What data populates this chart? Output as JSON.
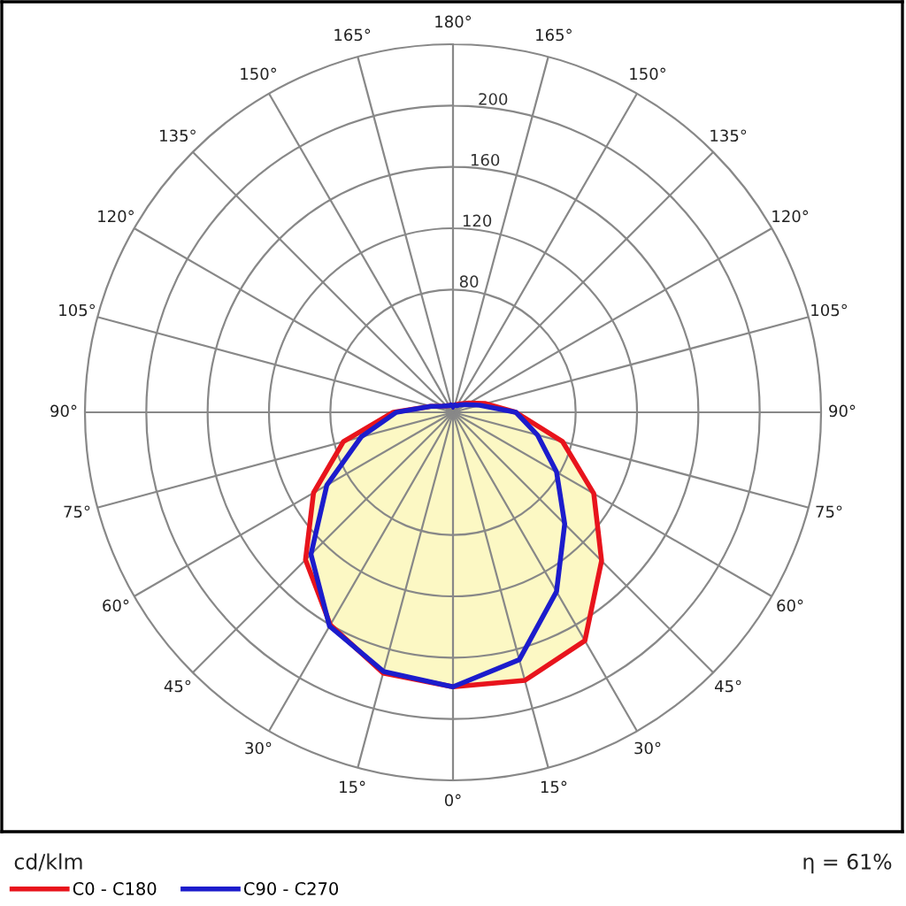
{
  "chart_data": {
    "type": "radar",
    "categories": [
      "180°",
      "165°",
      "150°",
      "135°",
      "120°",
      "105°",
      "90°",
      "75°",
      "60°",
      "45°",
      "30°",
      "15°",
      "0°",
      "15°",
      "30°",
      "45°",
      "60°",
      "75°",
      "90°",
      "105°",
      "120°",
      "135°",
      "150°",
      "165°"
    ],
    "series": [
      {
        "name": "C0 - C180",
        "color": "#e8141c",
        "values": [
          4,
          5,
          6,
          8,
          12,
          22,
          41,
          74,
          106,
          137,
          172,
          181,
          179,
          176,
          160,
          136,
          105,
          74,
          39,
          15,
          8,
          6,
          5,
          5
        ]
      },
      {
        "name": "C90 - C270",
        "color": "#1c1ccc",
        "values": [
          4,
          5,
          5,
          7,
          10,
          18,
          41,
          57,
          78,
          103,
          135,
          167,
          179,
          175,
          161,
          131,
          95,
          62,
          37,
          15,
          8,
          6,
          5,
          5
        ]
      }
    ],
    "ylim": [
      0,
      240
    ],
    "yticks": [
      80,
      120,
      160,
      200
    ],
    "grid": true,
    "legend": "bottom left",
    "annotations": [
      "cd/klm",
      "η = 61%"
    ]
  }
}
